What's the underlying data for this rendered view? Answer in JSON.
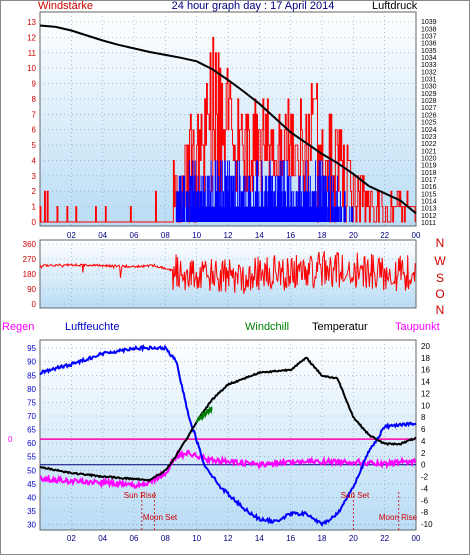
{
  "header": {
    "left_label": "Windstärke",
    "title": "24 hour graph day : 17 April 2014",
    "right_label": "Luftdruck"
  },
  "colors": {
    "panel_top": "#ffffff",
    "panel_bottom": "#b9dcf5",
    "wind_speed": "#ff0000",
    "wind_gust": "#0000ff",
    "pressure": "#000000",
    "wind_dir": "#ff0000",
    "temperature": "#000000",
    "humidity": "#0000ff",
    "dewpoint": "#ff00ff",
    "windchill": "#008000",
    "zero_line": "#ff00aa",
    "label_red": "#cc0000"
  },
  "chart_data": [
    {
      "id": "wind-pressure",
      "type": "line",
      "x_ticks": [
        "02",
        "04",
        "06",
        "08",
        "10",
        "12",
        "14",
        "16",
        "18",
        "20",
        "22",
        "00"
      ],
      "wind_axis": {
        "label": "Windstärke",
        "ylim": [
          0,
          13
        ],
        "ticks": [
          0,
          1,
          2,
          3,
          4,
          5,
          6,
          7,
          8,
          9,
          10,
          11,
          12,
          13
        ]
      },
      "pressure_axis": {
        "label": "Luftdruck",
        "ylim": [
          1011,
          1040
        ],
        "ticks": [
          1011,
          1012,
          1013,
          1014,
          1015,
          1016,
          1017,
          1018,
          1019,
          1020,
          1021,
          1022,
          1023,
          1024,
          1025,
          1026,
          1027,
          1028,
          1029,
          1030,
          1031,
          1032,
          1033,
          1034,
          1035,
          1036,
          1037,
          1038,
          1039
        ]
      },
      "pressure_series": {
        "x": [
          0,
          1,
          2,
          3,
          4,
          5,
          6,
          7,
          8,
          9,
          10,
          11,
          12,
          13,
          14,
          15,
          16,
          17,
          18,
          19,
          20,
          21,
          22,
          23,
          24
        ],
        "values": [
          1038.4,
          1038.2,
          1037.7,
          1037.0,
          1036.3,
          1035.7,
          1035.2,
          1034.7,
          1034.3,
          1033.9,
          1033.4,
          1032.3,
          1030.8,
          1029.2,
          1027.5,
          1025.5,
          1023.5,
          1022.0,
          1020.5,
          1019.2,
          1017.7,
          1016.0,
          1015.0,
          1014.0,
          1012.2
        ]
      },
      "wind_speed_summary": {
        "x": [
          0,
          3,
          6,
          8.4,
          9.2,
          10,
          11,
          12,
          13,
          14,
          16,
          18,
          19,
          20,
          21,
          22,
          23,
          24
        ],
        "typical": [
          0,
          1,
          0,
          1,
          2,
          4,
          6,
          5,
          4,
          5,
          5,
          3,
          3,
          1,
          1,
          0,
          1,
          0
        ],
        "peak": [
          2,
          2,
          2,
          4,
          7,
          10,
          13,
          10,
          8,
          9,
          8,
          10,
          7,
          5,
          2,
          2,
          2,
          2
        ]
      },
      "wind_gust_summary": {
        "x": [
          8.7,
          10,
          12,
          14,
          16,
          18,
          19,
          20
        ],
        "typical": [
          1,
          2,
          2,
          2,
          2,
          2,
          1,
          0
        ],
        "peak": [
          3,
          4,
          4,
          4,
          4,
          4,
          3,
          1
        ]
      }
    },
    {
      "id": "wind-direction",
      "type": "line",
      "ylim": [
        0,
        360
      ],
      "y_ticks": [
        0,
        90,
        180,
        270,
        360
      ],
      "right_labels": [
        "N",
        "W",
        "S",
        "O",
        "N"
      ],
      "summary": {
        "x": [
          0,
          2,
          4,
          6,
          7.3,
          8.5,
          10,
          12,
          14,
          16,
          18,
          20,
          22,
          24
        ],
        "values": [
          230,
          235,
          230,
          225,
          230,
          200,
          170,
          160,
          180,
          190,
          210,
          200,
          190,
          180
        ]
      }
    },
    {
      "id": "temp-humidity",
      "type": "line",
      "legend": [
        "Regen",
        "Luftfeuchte",
        "Windchill",
        "Temperatur",
        "Taupunkt"
      ],
      "humidity_axis": {
        "ylim": [
          28,
          98
        ],
        "ticks": [
          30,
          35,
          40,
          45,
          50,
          55,
          60,
          65,
          70,
          75,
          80,
          85,
          90,
          95
        ]
      },
      "temperature_axis": {
        "ylim": [
          -11,
          21
        ],
        "ticks": [
          -10,
          -8,
          -6,
          -4,
          -2,
          0,
          2,
          4,
          6,
          8,
          10,
          12,
          14,
          16,
          18,
          20
        ]
      },
      "rain_axis": {
        "ticks": [
          0
        ]
      },
      "temperature": {
        "x": [
          0,
          2,
          4,
          6,
          7,
          8,
          8.7,
          9.5,
          10.3,
          11,
          12,
          14,
          16,
          17,
          18,
          19,
          20,
          21,
          22,
          23,
          24
        ],
        "values": [
          -0.4,
          -1.4,
          -2.0,
          -2.4,
          -2.6,
          -1.0,
          1.5,
          5.0,
          8.5,
          11.0,
          13.5,
          15.5,
          16.0,
          18.0,
          15.0,
          14.5,
          8.0,
          5.0,
          3.5,
          3.5,
          4.5
        ]
      },
      "humidity": {
        "x": [
          0,
          2,
          4,
          6,
          7,
          8,
          8.7,
          9.5,
          10.5,
          11.5,
          13,
          14,
          15,
          16,
          17,
          18,
          19,
          20,
          21,
          22,
          23,
          24
        ],
        "values": [
          86,
          89,
          93,
          95,
          95,
          95,
          90,
          70,
          52,
          44,
          36,
          32,
          31,
          34,
          34,
          30,
          34,
          44,
          57,
          66,
          67,
          67
        ]
      },
      "dewpoint": {
        "x": [
          0,
          2,
          4,
          6,
          7,
          8,
          8.7,
          9.5,
          10.5,
          12,
          14,
          16,
          18,
          20,
          22,
          23,
          24
        ],
        "values": [
          -2.3,
          -2.8,
          -3.0,
          -3.5,
          -3.0,
          -1.5,
          1.5,
          2.0,
          1.0,
          0.5,
          0.0,
          0.5,
          0.5,
          0.5,
          0.0,
          0.5,
          0.5
        ]
      },
      "windchill": {
        "x": [
          10,
          10.3,
          10.6,
          11
        ],
        "values": [
          7.0,
          8.0,
          8.8,
          9.5
        ]
      },
      "annotations": [
        {
          "text": "Sun Rise",
          "x": 6.5
        },
        {
          "text": "Moon Set",
          "x": 7.3
        },
        {
          "text": "Sun Set",
          "x": 20.0
        },
        {
          "text": "Moon Rise",
          "x": 22.9
        }
      ]
    }
  ]
}
